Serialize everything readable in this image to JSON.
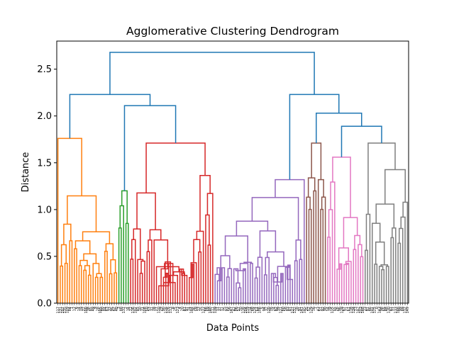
{
  "chart_data": {
    "type": "dendrogram",
    "title": "Agglomerative Clustering Dendrogram",
    "xlabel": "Data Points",
    "ylabel": "Distance",
    "ylim": [
      0.0,
      2.8
    ],
    "yticks": [
      0.0,
      0.5,
      1.0,
      1.5,
      2.0,
      2.5
    ],
    "ytick_labels": [
      "0.0",
      "0.5",
      "1.0",
      "1.5",
      "2.0",
      "2.5"
    ],
    "grid": false,
    "num_leaves": 150,
    "leaf_labels": [
      "117",
      "131",
      "107",
      "135",
      "109",
      "84",
      "1",
      "12",
      "6",
      "14",
      "19",
      "22",
      "100",
      "38",
      "85",
      "49",
      "9",
      "28",
      "105",
      "80",
      "44",
      "63",
      "33",
      "95",
      "62",
      "40",
      "3",
      "88",
      "137",
      "2",
      "34",
      "72",
      "136",
      "102",
      "45",
      "10",
      "71",
      "108",
      "50",
      "53",
      "31",
      "78",
      "27",
      "110",
      "29",
      "90",
      "116",
      "126",
      "113",
      "8",
      "25",
      "123",
      "4",
      "20",
      "47",
      "97",
      "74",
      "144",
      "36",
      "59",
      "13",
      "15",
      "122",
      "66",
      "69",
      "140",
      "111",
      "139",
      "17",
      "37",
      "11",
      "75",
      "93",
      "56",
      "147",
      "42",
      "86",
      "57",
      "70",
      "138",
      "104",
      "119",
      "114",
      "68",
      "124",
      "64",
      "106",
      "5",
      "94",
      "32",
      "120",
      "76",
      "24",
      "82",
      "39",
      "121",
      "60",
      "58",
      "83",
      "41",
      "127",
      "132",
      "18",
      "91",
      "141",
      "145",
      "35",
      "52",
      "129",
      "16",
      "7",
      "43",
      "51",
      "92",
      "30",
      "54",
      "79",
      "115",
      "55",
      "26",
      "96",
      "128",
      "67",
      "21",
      "61",
      "118",
      "134",
      "73",
      "142",
      "103",
      "148",
      "23",
      "81",
      "46",
      "101",
      "125",
      "0",
      "143",
      "98",
      "65",
      "48",
      "130",
      "87",
      "77",
      "133",
      "146",
      "99",
      "89",
      "112",
      "149"
    ],
    "clusters": [
      {
        "color": "#ff7f0e",
        "leaf_range": [
          0,
          26
        ],
        "height": 1.76
      },
      {
        "color": "#2ca02c",
        "leaf_range": [
          26,
          31
        ],
        "height": 1.2
      },
      {
        "color": "#d62728",
        "leaf_range": [
          31,
          67
        ],
        "height": 1.71
      },
      {
        "color": "#9467bd",
        "leaf_range": [
          67,
          106
        ],
        "height": 1.32
      },
      {
        "color": "#8c564b",
        "leaf_range": [
          106,
          115
        ],
        "height": 1.71
      },
      {
        "color": "#e377c2",
        "leaf_range": [
          115,
          131
        ],
        "height": 1.56
      },
      {
        "color": "#7f7f7f",
        "leaf_range": [
          131,
          150
        ],
        "height": 1.71
      }
    ],
    "above_threshold_color": "#1f77b4",
    "top_merges": [
      2.11,
      2.23,
      1.89,
      2.03,
      2.23,
      2.68
    ]
  }
}
